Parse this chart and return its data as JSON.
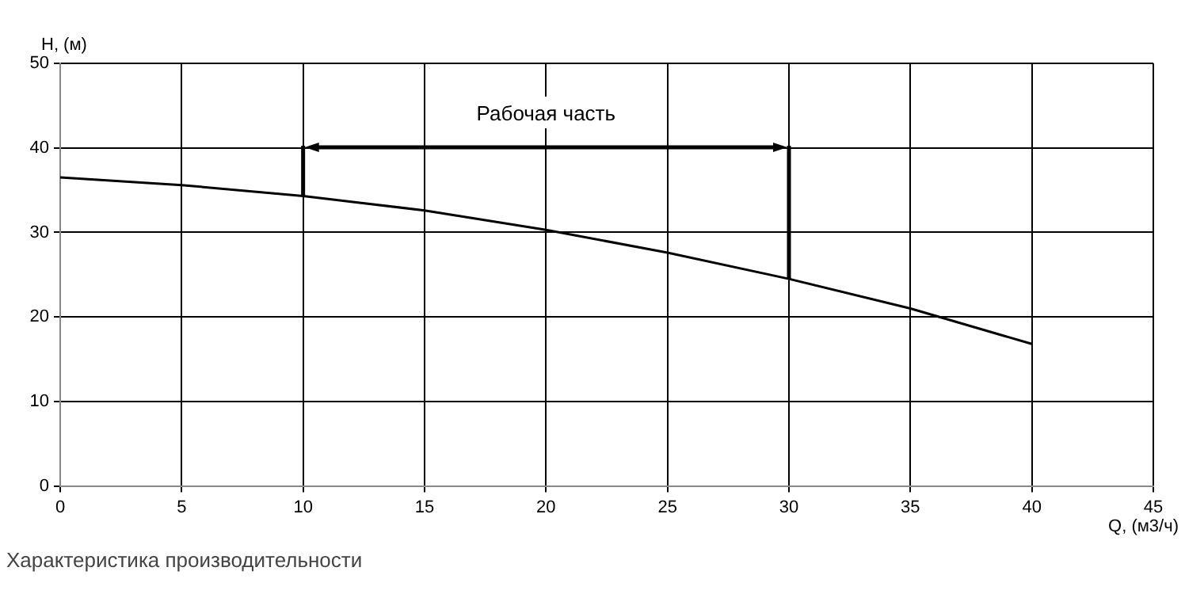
{
  "chart_data": {
    "type": "line",
    "xlabel": "Q, (м3/ч)",
    "ylabel": "H, (м)",
    "x": [
      0,
      5,
      10,
      15,
      20,
      25,
      30,
      35,
      40
    ],
    "series": [
      {
        "color": "#000000",
        "values": [
          36.5,
          35.6,
          34.3,
          32.6,
          30.3,
          27.6,
          24.5,
          21.0,
          16.8
        ]
      }
    ],
    "xlim": [
      0,
      45
    ],
    "xticks": [
      0,
      5,
      10,
      15,
      20,
      25,
      30,
      35,
      40,
      45
    ],
    "ylim": [
      0,
      50
    ],
    "yticks": [
      0,
      10,
      20,
      30,
      40,
      50
    ],
    "grid": true,
    "legend": false,
    "marker": "none",
    "line_style": "solid",
    "ref_lines": [
      {
        "axis": "x",
        "value": 10,
        "color": "#000000"
      },
      {
        "axis": "x",
        "value": 30,
        "color": "#000000"
      }
    ],
    "annotations": [
      "Рабочая часть",
      "Характеристика производительности"
    ]
  }
}
